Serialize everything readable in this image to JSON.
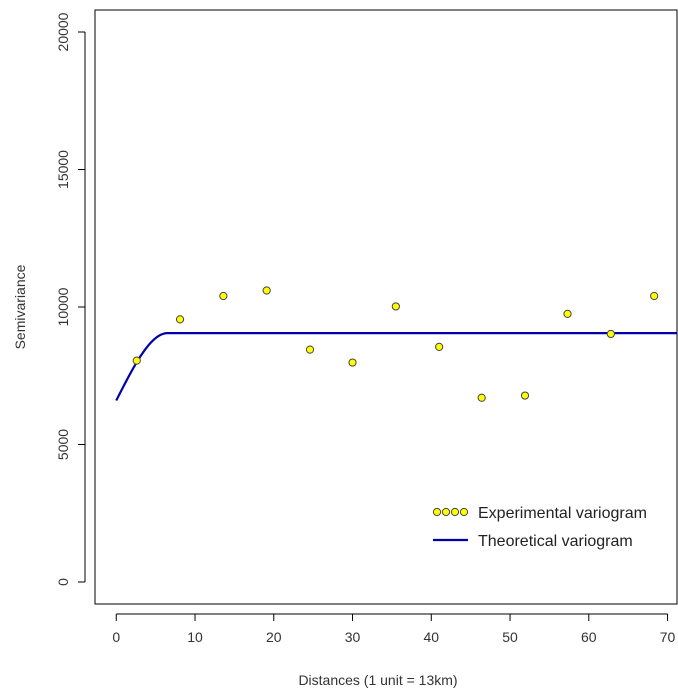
{
  "chart_data": {
    "type": "scatter",
    "title": "",
    "xlabel": "Distances (1 unit = 13km)",
    "ylabel": "Semivariance",
    "xlim": [
      -2.7,
      71.2
    ],
    "ylim": [
      -800,
      20800
    ],
    "x_ticks": [
      0,
      10,
      20,
      30,
      40,
      50,
      60,
      70
    ],
    "y_ticks": [
      0,
      5000,
      10000,
      15000,
      20000
    ],
    "grid": false,
    "legend_position": "bottom-right",
    "series": [
      {
        "name": "Experimental variogram",
        "type": "scatter",
        "color": "#ffff00",
        "x": [
          2.6,
          8.1,
          13.6,
          19.1,
          24.6,
          30.0,
          35.5,
          41.0,
          46.4,
          51.9,
          57.3,
          62.8,
          68.3
        ],
        "y": [
          8050,
          9550,
          10400,
          10600,
          8450,
          7980,
          10020,
          8550,
          6700,
          6780,
          9750,
          9020,
          10400
        ]
      },
      {
        "name": "Theoretical variogram",
        "type": "line",
        "color": "#0000aa",
        "model": "spherical",
        "nugget": 6600,
        "sill": 9050,
        "range": 6.5,
        "x_max": 71.2
      }
    ]
  }
}
